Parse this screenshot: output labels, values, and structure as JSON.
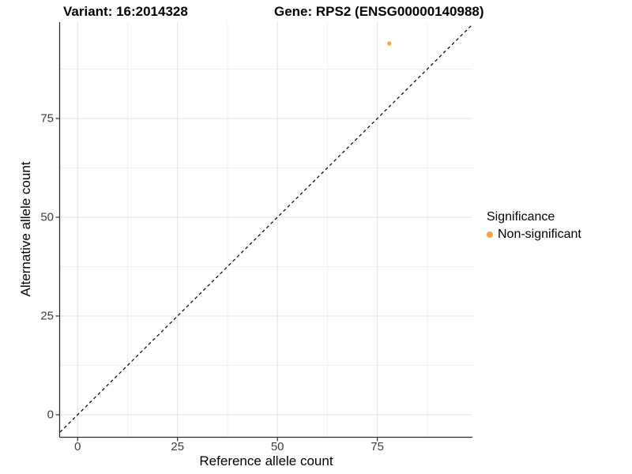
{
  "title": {
    "variant": "Variant: 16:2014328",
    "gene": "Gene: RPS2 (ENSG00000140988)"
  },
  "chart_data": {
    "type": "scatter",
    "title": "Variant: 16:2014328   Gene: RPS2 (ENSG00000140988)",
    "xlabel": "Reference allele count",
    "ylabel": "Alternative allele count",
    "xlim": [
      -4.4,
      98.8
    ],
    "ylim": [
      -5.6,
      99.4
    ],
    "x_ticks": [
      0,
      25,
      50,
      75
    ],
    "y_ticks": [
      0,
      25,
      50,
      75
    ],
    "x_minor_ticks": [
      12.5,
      37.5,
      62.5,
      87.5
    ],
    "y_minor_ticks": [
      12.5,
      37.5,
      62.5,
      87.5
    ],
    "grid": true,
    "series": [
      {
        "name": "Non-significant",
        "color": "#FAA43C",
        "points": [
          {
            "x": 78,
            "y": 94
          }
        ]
      }
    ],
    "reference_line": {
      "type": "identity",
      "style": "dashed",
      "color": "#000000"
    },
    "legend": {
      "title": "Significance",
      "position": "right",
      "entries": [
        {
          "label": "Non-significant",
          "color": "#FAA43C"
        }
      ]
    }
  },
  "colors": {
    "background": "#ffffff",
    "grid_major": "#e3e3e3",
    "grid_minor": "#f0f0f0",
    "axis_line": "#2e2e2e",
    "tick_text": "#3d3d3d",
    "point": "#FAA43C"
  }
}
